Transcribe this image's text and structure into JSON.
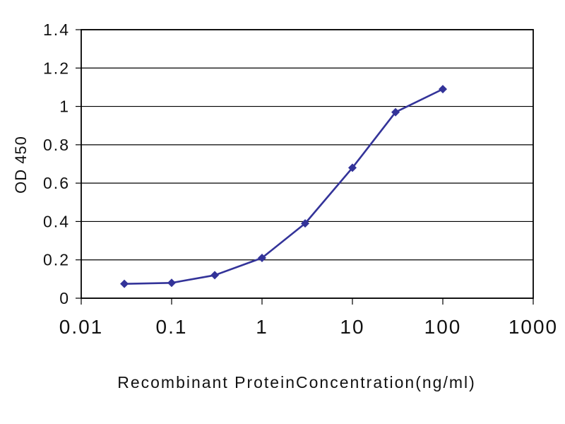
{
  "chart_data": {
    "type": "line",
    "title": "",
    "xlabel": "Recombinant ProteinConcentration(ng/ml)",
    "ylabel": "OD 450",
    "x_scale": "log",
    "xlim": [
      0.01,
      1000
    ],
    "ylim": [
      0,
      1.4
    ],
    "x_ticks": [
      0.01,
      0.1,
      1,
      10,
      100,
      1000
    ],
    "x_tick_labels": [
      "0.01",
      "0.1",
      "1",
      "10",
      "100",
      "1000"
    ],
    "y_ticks": [
      0,
      0.2,
      0.4,
      0.6,
      0.8,
      1.0,
      1.2,
      1.4
    ],
    "y_tick_labels": [
      "0",
      "0.2",
      "0.4",
      "0.6",
      "0.8",
      "1",
      "1.2",
      "1.4"
    ],
    "grid": "horizontal",
    "legend": "none",
    "series": [
      {
        "name": "OD450",
        "x": [
          0.03,
          0.1,
          0.3,
          1,
          3,
          10,
          30,
          100
        ],
        "y": [
          0.075,
          0.08,
          0.12,
          0.21,
          0.39,
          0.68,
          0.97,
          1.09
        ],
        "color": "#333399",
        "marker": "diamond",
        "line_style": "solid"
      }
    ]
  },
  "colors": {
    "line": "#333399",
    "grid": "#000000",
    "border": "#000000",
    "text": "#111111",
    "background": "#ffffff"
  }
}
